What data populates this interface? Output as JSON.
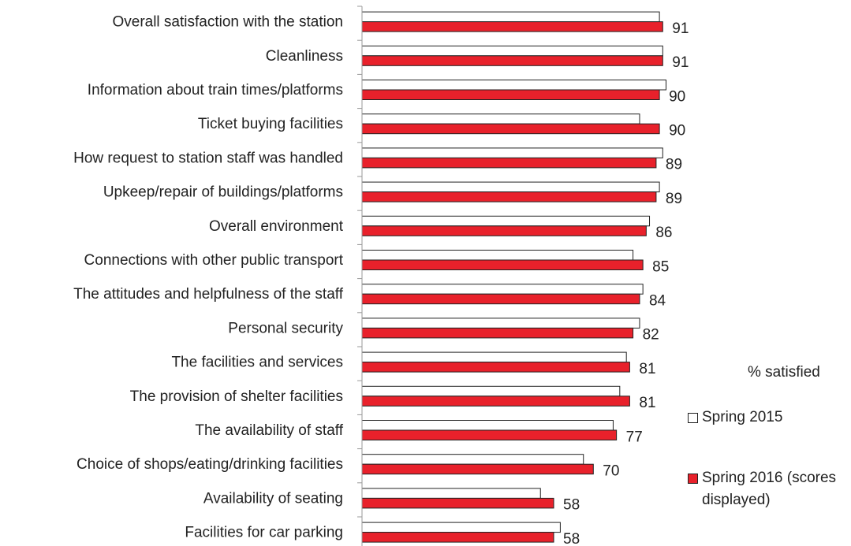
{
  "chart_data": {
    "type": "hbar",
    "categories": [
      "Overall satisfaction with the station",
      "Cleanliness",
      "Information about train times/platforms",
      "Ticket buying facilities",
      "How request to station staff was handled",
      "Upkeep/repair of buildings/platforms",
      "Overall environment",
      "Connections with other public transport",
      "The attitudes and helpfulness of the staff",
      "Personal security",
      "The facilities and services",
      "The provision of shelter facilities",
      "The availability of staff",
      "Choice of shops/eating/drinking facilities",
      "Availability of seating",
      "Facilities for car parking"
    ],
    "series": [
      {
        "name": "Spring 2015",
        "color": "#ffffff",
        "values": [
          90,
          91,
          92,
          84,
          91,
          90,
          87,
          82,
          85,
          84,
          80,
          78,
          76,
          67,
          54,
          60
        ]
      },
      {
        "name": "Spring 2016 (scores displayed)",
        "color": "#e8212b",
        "values": [
          91,
          91,
          90,
          90,
          89,
          89,
          86,
          85,
          84,
          82,
          81,
          81,
          77,
          70,
          58,
          58
        ],
        "show_value_labels": true
      }
    ],
    "legend_title": "% satisfied",
    "xlim": [
      0,
      100
    ],
    "legend": "right"
  }
}
